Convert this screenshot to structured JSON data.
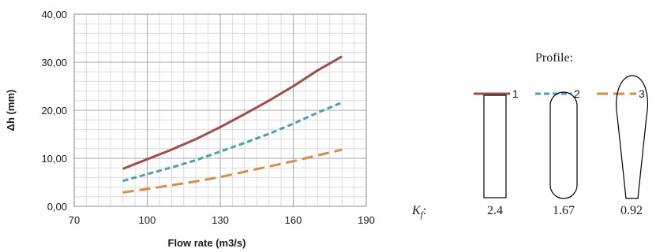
{
  "chart_data": {
    "type": "line",
    "xlabel": "Flow rate (m3/s)",
    "ylabel": "Δh (mm)",
    "xlim": [
      70,
      190
    ],
    "ylim": [
      0,
      40
    ],
    "x_ticks": [
      "70",
      "100",
      "130",
      "160",
      "190"
    ],
    "y_ticks": [
      "0,00",
      "10,00",
      "20,00",
      "30,00",
      "40,00"
    ],
    "grid": true,
    "x": [
      90,
      100,
      110,
      120,
      130,
      140,
      150,
      160,
      170,
      180
    ],
    "series": [
      {
        "name": "1",
        "color": "#a64b47",
        "dash": "solid",
        "values": [
          7.8,
          9.8,
          11.8,
          14.0,
          16.5,
          19.2,
          22.0,
          25.0,
          28.3,
          31.2
        ]
      },
      {
        "name": "2",
        "color": "#4b9fb5",
        "dash": "dashed",
        "values": [
          5.3,
          6.7,
          8.1,
          9.6,
          11.4,
          13.2,
          15.1,
          17.2,
          19.5,
          21.6
        ]
      },
      {
        "name": "3",
        "color": "#e08a3c",
        "dash": "long-dashed",
        "values": [
          2.9,
          3.6,
          4.4,
          5.2,
          6.1,
          7.2,
          8.3,
          9.4,
          10.6,
          11.8
        ]
      }
    ]
  },
  "profile_panel": {
    "title": "Profile:",
    "kf_label_main": "K",
    "kf_label_sub": "f",
    "kf_label_suffix": ":",
    "kf_values": [
      "2.4",
      "1.67",
      "0.92"
    ]
  }
}
